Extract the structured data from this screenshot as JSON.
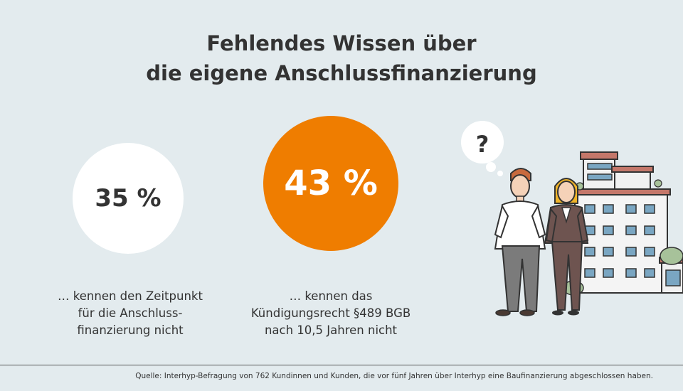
{
  "title_line1": "Fehlendes Wissen über",
  "title_line2": "die eigene Anschlussfinanzierung",
  "stat1": {
    "value": "35 %",
    "caption": [
      "… kennen den Zeitpunkt",
      "für die Anschluss-",
      "finanzierung nicht"
    ]
  },
  "stat2": {
    "value": "43 %",
    "caption": [
      "… kennen das",
      "Kündigungsrecht §489 BGB",
      "nach 10,5 Jahren nicht"
    ]
  },
  "thought_bubble": "?",
  "source": "Quelle: Interhyp-Befragung von 762 Kundinnen und Kunden, die vor fünf Jahren über Interhyp eine Baufinanzierung abgeschlossen haben.",
  "colors": {
    "background": "#e3ebee",
    "accent_orange": "#ef7d00",
    "text": "#333333"
  }
}
